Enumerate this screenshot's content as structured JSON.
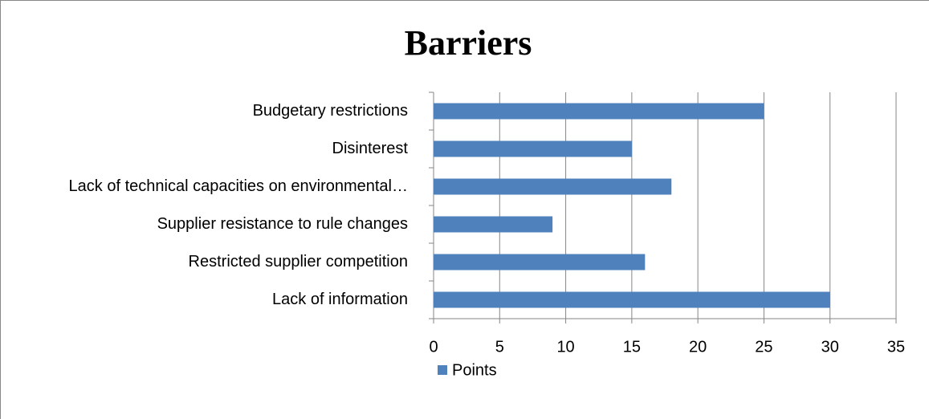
{
  "chart_data": {
    "type": "bar",
    "orientation": "horizontal",
    "title": "Barriers",
    "categories": [
      "Budgetary restrictions",
      "Disinterest",
      "Lack of technical capacities on environmental…",
      "Supplier resistance to rule changes",
      "Restricted supplier competition",
      "Lack of information"
    ],
    "series": [
      {
        "name": "Points",
        "color": "#4f81bd",
        "values": [
          25,
          15,
          18,
          9,
          16,
          30
        ]
      }
    ],
    "xlim": [
      0,
      35
    ],
    "xticks": [
      0,
      5,
      10,
      15,
      20,
      25,
      30,
      35
    ],
    "grid": true,
    "legend": "bottom"
  }
}
